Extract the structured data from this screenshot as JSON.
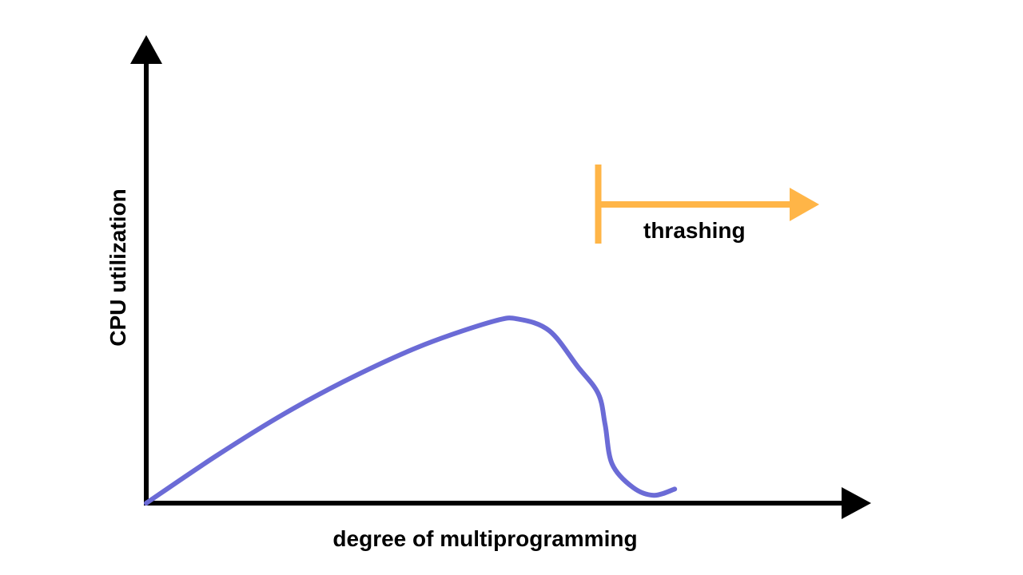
{
  "chart_data": {
    "type": "line",
    "title": "",
    "xlabel": "degree of multiprogramming",
    "ylabel": "CPU utilization",
    "grid": false,
    "legend": "none",
    "xlim": [
      0,
      100
    ],
    "ylim": [
      0,
      100
    ],
    "series": [
      {
        "color": "#6B6BD6",
        "points": [
          [
            0,
            0
          ],
          [
            10,
            12
          ],
          [
            20,
            23
          ],
          [
            30,
            32.5
          ],
          [
            40,
            40.5
          ],
          [
            50,
            46.5
          ],
          [
            53.6,
            47
          ],
          [
            58,
            44
          ],
          [
            62,
            35
          ],
          [
            65,
            28
          ],
          [
            66,
            20
          ],
          [
            67,
            10
          ],
          [
            70,
            4
          ],
          [
            73,
            2
          ],
          [
            76,
            3.6
          ]
        ]
      }
    ],
    "annotations": [
      {
        "label": "thrashing",
        "start_x": 65,
        "color": "#FFB547"
      }
    ],
    "colors": {
      "axis": "#000000",
      "curve": "#6B6BD6",
      "annotation": "#FFB547"
    }
  }
}
